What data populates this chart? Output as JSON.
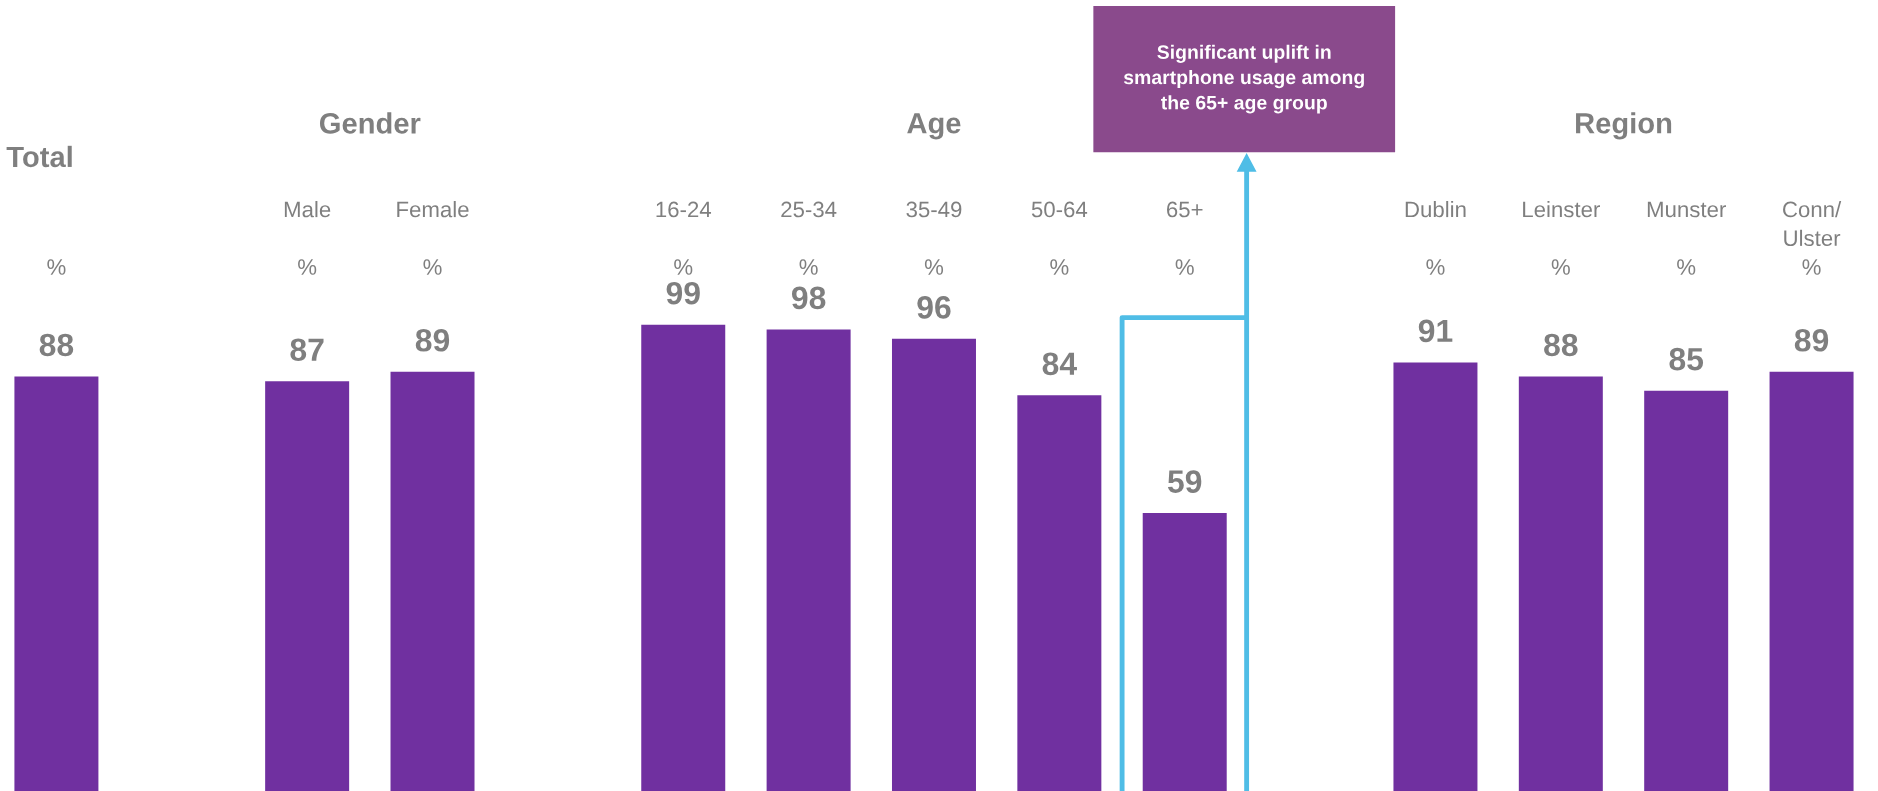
{
  "chart_data": {
    "type": "bar",
    "categories": [
      "%",
      null,
      "Male\n\n%",
      "Female\n\n%",
      null,
      "16-24\n\n%",
      "25-34\n\n%",
      "35-49\n\n%",
      "50-64\n\n%",
      "65+\n\n%",
      null,
      "Dublin\n\n%",
      "Leinster\n\n%",
      "Munster\n\n%",
      "Conn/\nUlster\n%"
    ],
    "values": [
      88,
      null,
      87,
      89,
      null,
      99,
      98,
      96,
      84,
      59,
      null,
      91,
      88,
      85,
      89
    ],
    "color": "#7030a0",
    "data_labels": true,
    "annotations": [
      "Total",
      "Gender",
      "Age",
      "Region",
      "Significant uplift in\nsmartphone usage among\nthe 65+ age group"
    ]
  }
}
